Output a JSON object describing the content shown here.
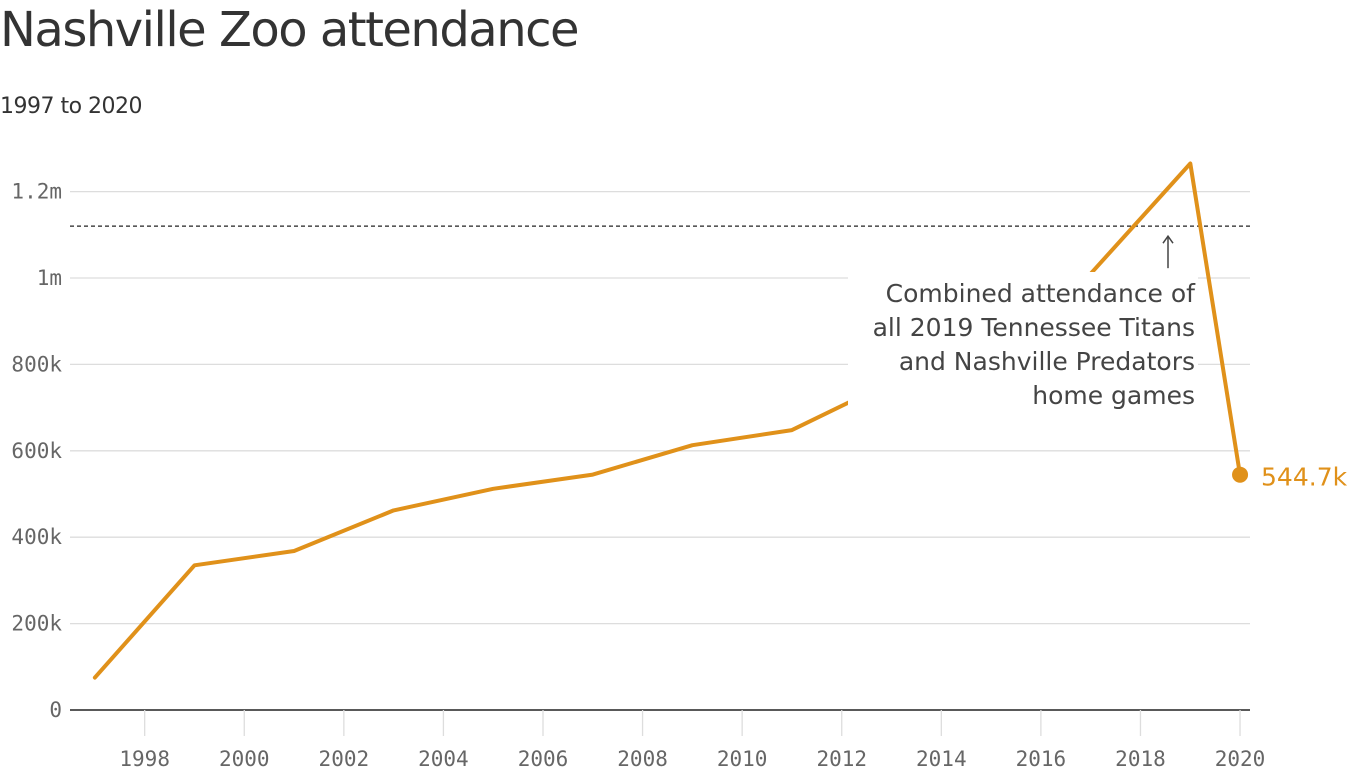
{
  "page": {
    "title": "Nashville Zoo attendance",
    "subtitle": "1997 to 2020"
  },
  "chart_data": {
    "type": "line",
    "title": "Nashville Zoo attendance",
    "subtitle": "1997 to 2020",
    "xlabel": "",
    "ylabel": "",
    "x": [
      1997,
      1999,
      2001,
      2003,
      2005,
      2007,
      2009,
      2011,
      2013,
      2015,
      2017,
      2019,
      2020
    ],
    "series": [
      {
        "values": [
          75000,
          335000,
          368000,
          462000,
          512000,
          545000,
          613000,
          648000,
          760000,
          830000,
          1010000,
          1265000,
          544700
        ],
        "color": "#e0911a"
      }
    ],
    "ylim": [
      0,
      1250000
    ],
    "xlim": [
      1996.5,
      2020.2
    ],
    "y_ticks": [
      0,
      200000,
      400000,
      600000,
      800000,
      1000000,
      1200000
    ],
    "y_tick_labels": [
      "0",
      "200k",
      "400k",
      "600k",
      "800k",
      "1m",
      "1.2m"
    ],
    "x_ticks": [
      1998,
      2000,
      2002,
      2004,
      2006,
      2008,
      2010,
      2012,
      2014,
      2016,
      2018,
      2020
    ],
    "x_tick_labels": [
      "1998",
      "2000",
      "2002",
      "2004",
      "2006",
      "2008",
      "2010",
      "2012",
      "2014",
      "2016",
      "2018",
      "2020"
    ],
    "grid": true,
    "reference_line": {
      "value": 1120000,
      "style": "dashed",
      "annotation": [
        "Combined attendance of",
        "all 2019 Tennessee Titans",
        "and Nashville Predators",
        "home games"
      ],
      "arrow": "up-arrow"
    },
    "end_label": "544.7k"
  }
}
